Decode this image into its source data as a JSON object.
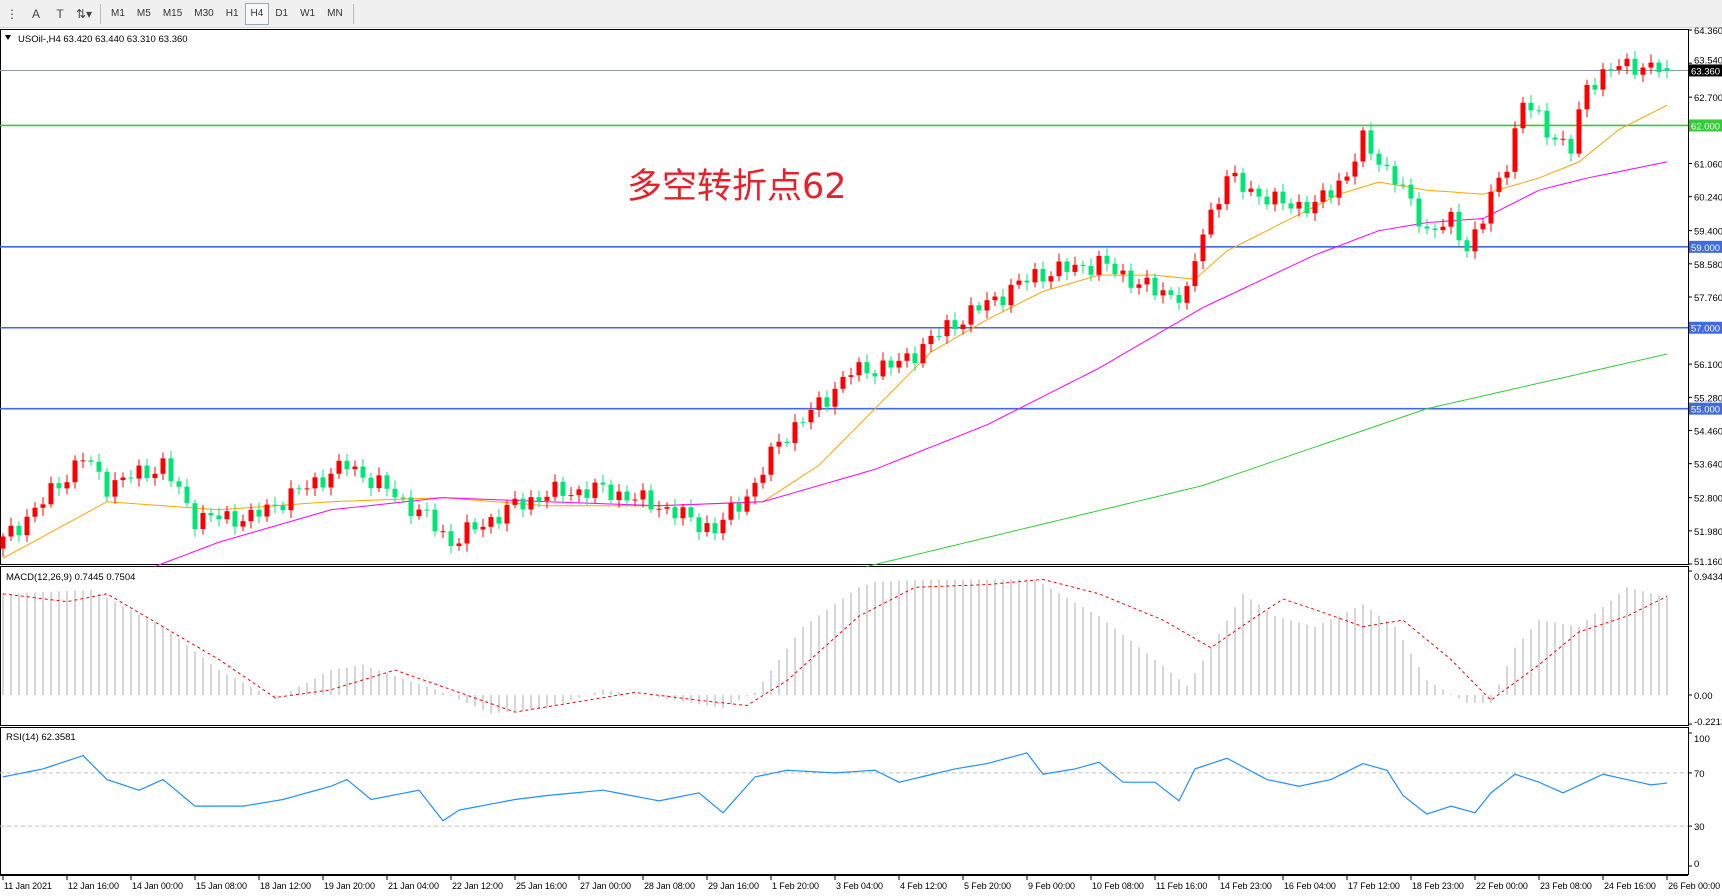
{
  "toolbar": {
    "tools": [
      {
        "icon": "period-separator-icon",
        "label": ""
      },
      {
        "icon": "text-icon",
        "label": "A"
      },
      {
        "icon": "text-label-icon",
        "label": "T"
      },
      {
        "icon": "arrows-icon",
        "label": "⇅▾"
      }
    ],
    "timeframes": [
      "M1",
      "M5",
      "M15",
      "M30",
      "H1",
      "H4",
      "D1",
      "W1",
      "MN"
    ],
    "active_timeframe": "H4"
  },
  "chart": {
    "symbol_line": "USOil-,H4  63.420 63.440 63.310 63.360",
    "annotation": "多空转折点62",
    "colors": {
      "up": "#ff0000",
      "down": "#00e676",
      "ma_fast": "#ffa500",
      "ma_mid": "#ff00ff",
      "ma_slow": "#32cd32",
      "level_green": "#32cd32",
      "level_blue": "#4169e1",
      "current": "#8a9aa8"
    }
  },
  "chart_data": [
    {
      "type": "candlestick",
      "title": "USOil-,H4",
      "ohlc_last": {
        "open": 63.42,
        "high": 63.44,
        "low": 63.31,
        "close": 63.36
      },
      "ylim": [
        51.16,
        64.36
      ],
      "y_ticks": [
        "64.360",
        "63.540",
        "62.700",
        "61.060",
        "60.240",
        "59.400",
        "58.580",
        "57.760",
        "56.100",
        "55.280",
        "54.460",
        "53.640",
        "52.800",
        "51.980",
        "51.160"
      ],
      "x_ticks": [
        "11 Jan 2021",
        "12 Jan 16:00",
        "14 Jan 00:00",
        "15 Jan 08:00",
        "18 Jan 12:00",
        "19 Jan 20:00",
        "21 Jan 04:00",
        "22 Jan 12:00",
        "25 Jan 16:00",
        "27 Jan 00:00",
        "28 Jan 08:00",
        "29 Jan 16:00",
        "1 Feb 20:00",
        "3 Feb 04:00",
        "4 Feb 12:00",
        "5 Feb 20:00",
        "9 Feb 00:00",
        "10 Feb 08:00",
        "11 Feb 16:00",
        "14 Feb 23:00",
        "16 Feb 04:00",
        "17 Feb 12:00",
        "18 Feb 23:00",
        "22 Feb 00:00",
        "23 Feb 08:00",
        "24 Feb 16:00",
        "26 Feb 00:00"
      ],
      "bars": 209,
      "close_keypoints": [
        [
          0,
          51.74
        ],
        [
          5,
          52.7
        ],
        [
          10,
          53.8
        ],
        [
          13,
          53.1
        ],
        [
          20,
          53.6
        ],
        [
          24,
          52.3
        ],
        [
          31,
          52.3
        ],
        [
          41,
          53.4
        ],
        [
          43,
          53.6
        ],
        [
          48,
          53.0
        ],
        [
          53,
          52.3
        ],
        [
          56,
          51.7
        ],
        [
          64,
          52.6
        ],
        [
          68,
          52.9
        ],
        [
          75,
          53.0
        ],
        [
          82,
          52.6
        ],
        [
          89,
          52.0
        ],
        [
          94,
          53.1
        ],
        [
          97,
          54.2
        ],
        [
          101,
          54.9
        ],
        [
          106,
          55.9
        ],
        [
          112,
          56.1
        ],
        [
          118,
          57.0
        ],
        [
          123,
          57.6
        ],
        [
          129,
          58.3
        ],
        [
          137,
          58.6
        ],
        [
          144,
          57.9
        ],
        [
          148,
          57.8
        ],
        [
          150,
          59.4
        ],
        [
          153,
          60.7
        ],
        [
          159,
          60.1
        ],
        [
          164,
          60.0
        ],
        [
          168,
          60.8
        ],
        [
          170,
          61.6
        ],
        [
          174,
          60.7
        ],
        [
          178,
          59.4
        ],
        [
          181,
          59.6
        ],
        [
          183,
          59.0
        ],
        [
          185,
          59.7
        ],
        [
          188,
          61.1
        ],
        [
          190,
          62.6
        ],
        [
          193,
          61.9
        ],
        [
          196,
          61.4
        ],
        [
          198,
          63.0
        ],
        [
          201,
          63.4
        ],
        [
          204,
          63.5
        ],
        [
          208,
          63.36
        ]
      ],
      "moving_averages": [
        {
          "color": "#ffa500",
          "keypoints": [
            [
              0,
              51.3
            ],
            [
              13,
              52.7
            ],
            [
              27,
              52.5
            ],
            [
              41,
              52.7
            ],
            [
              55,
              52.8
            ],
            [
              68,
              52.6
            ],
            [
              82,
              52.6
            ],
            [
              95,
              52.7
            ],
            [
              102,
              53.6
            ],
            [
              109,
              55.0
            ],
            [
              116,
              56.4
            ],
            [
              123,
              57.2
            ],
            [
              130,
              57.9
            ],
            [
              137,
              58.3
            ],
            [
              144,
              58.3
            ],
            [
              149,
              58.2
            ],
            [
              153,
              58.9
            ],
            [
              160,
              59.6
            ],
            [
              167,
              60.3
            ],
            [
              172,
              60.6
            ],
            [
              178,
              60.4
            ],
            [
              185,
              60.3
            ],
            [
              192,
              60.7
            ],
            [
              197,
              61.1
            ],
            [
              202,
              61.9
            ],
            [
              208,
              62.5
            ]
          ]
        },
        {
          "color": "#ff00ff",
          "keypoints": [
            [
              19,
              51.1
            ],
            [
              27,
              51.7
            ],
            [
              41,
              52.5
            ],
            [
              55,
              52.8
            ],
            [
              68,
              52.7
            ],
            [
              82,
              52.6
            ],
            [
              95,
              52.7
            ],
            [
              109,
              53.5
            ],
            [
              123,
              54.6
            ],
            [
              137,
              56.0
            ],
            [
              150,
              57.5
            ],
            [
              164,
              58.8
            ],
            [
              172,
              59.4
            ],
            [
              178,
              59.6
            ],
            [
              185,
              59.7
            ],
            [
              192,
              60.4
            ],
            [
              198,
              60.7
            ],
            [
              208,
              61.1
            ]
          ]
        },
        {
          "color": "#32cd32",
          "keypoints": [
            [
              108,
              51.1
            ],
            [
              150,
              53.1
            ],
            [
              178,
              55.0
            ],
            [
              208,
              56.35
            ]
          ]
        }
      ],
      "levels": [
        {
          "value": 63.36,
          "label": "63.360",
          "kind": "current"
        },
        {
          "value": 62.0,
          "label": "62.000",
          "kind": "green"
        },
        {
          "value": 59.0,
          "label": "59.000",
          "kind": "blue"
        },
        {
          "value": 57.0,
          "label": "57.000",
          "kind": "blue"
        },
        {
          "value": 55.0,
          "label": "55.000",
          "kind": "blue"
        }
      ]
    },
    {
      "type": "bar",
      "title": "MACD(12,26,9) 0.7445 0.7504",
      "ylim": [
        -0.2213,
        0.9434
      ],
      "y_ticks": [
        "0.9434",
        "0.00",
        "-0.2213"
      ],
      "histogram_keypoints": [
        [
          0,
          0.77
        ],
        [
          11,
          0.8
        ],
        [
          20,
          0.52
        ],
        [
          27,
          0.19
        ],
        [
          34,
          -0.03
        ],
        [
          41,
          0.19
        ],
        [
          45,
          0.23
        ],
        [
          55,
          0.02
        ],
        [
          61,
          -0.14
        ],
        [
          68,
          -0.1
        ],
        [
          75,
          0.04
        ],
        [
          82,
          -0.02
        ],
        [
          90,
          -0.1
        ],
        [
          94,
          0.02
        ],
        [
          100,
          0.52
        ],
        [
          107,
          0.82
        ],
        [
          109,
          0.86
        ],
        [
          116,
          0.88
        ],
        [
          129,
          0.88
        ],
        [
          137,
          0.6
        ],
        [
          144,
          0.27
        ],
        [
          148,
          0.07
        ],
        [
          151,
          0.36
        ],
        [
          155,
          0.77
        ],
        [
          159,
          0.6
        ],
        [
          164,
          0.52
        ],
        [
          170,
          0.69
        ],
        [
          174,
          0.52
        ],
        [
          178,
          0.11
        ],
        [
          183,
          -0.06
        ],
        [
          186,
          -0.06
        ],
        [
          189,
          0.36
        ],
        [
          192,
          0.57
        ],
        [
          197,
          0.52
        ],
        [
          203,
          0.82
        ],
        [
          208,
          0.7445
        ]
      ],
      "signal_keypoints": [
        [
          0,
          0.77
        ],
        [
          8,
          0.71
        ],
        [
          13,
          0.77
        ],
        [
          20,
          0.52
        ],
        [
          27,
          0.27
        ],
        [
          34,
          -0.02
        ],
        [
          41,
          0.04
        ],
        [
          49,
          0.19
        ],
        [
          57,
          0.02
        ],
        [
          64,
          -0.13
        ],
        [
          71,
          -0.06
        ],
        [
          79,
          0.02
        ],
        [
          87,
          -0.04
        ],
        [
          93,
          -0.08
        ],
        [
          98,
          0.11
        ],
        [
          107,
          0.6
        ],
        [
          114,
          0.82
        ],
        [
          123,
          0.84
        ],
        [
          130,
          0.88
        ],
        [
          137,
          0.77
        ],
        [
          145,
          0.57
        ],
        [
          151,
          0.36
        ],
        [
          156,
          0.57
        ],
        [
          160,
          0.73
        ],
        [
          164,
          0.65
        ],
        [
          170,
          0.52
        ],
        [
          175,
          0.57
        ],
        [
          181,
          0.27
        ],
        [
          186,
          -0.04
        ],
        [
          192,
          0.23
        ],
        [
          197,
          0.48
        ],
        [
          203,
          0.6
        ],
        [
          208,
          0.7504
        ]
      ]
    },
    {
      "type": "line",
      "title": "RSI(14) 62.3581",
      "ylim": [
        0,
        100
      ],
      "y_ticks": [
        "100",
        "70",
        "30",
        "0"
      ],
      "levels": [
        70,
        30
      ],
      "keypoints": [
        [
          0,
          67
        ],
        [
          5,
          73
        ],
        [
          10,
          83
        ],
        [
          13,
          65
        ],
        [
          17,
          57
        ],
        [
          20,
          65
        ],
        [
          24,
          45
        ],
        [
          30,
          45
        ],
        [
          35,
          50
        ],
        [
          41,
          60
        ],
        [
          43,
          65
        ],
        [
          46,
          50
        ],
        [
          52,
          57
        ],
        [
          55,
          34
        ],
        [
          57,
          42
        ],
        [
          64,
          50
        ],
        [
          68,
          53
        ],
        [
          75,
          57
        ],
        [
          82,
          49
        ],
        [
          87,
          55
        ],
        [
          90,
          40
        ],
        [
          94,
          67
        ],
        [
          98,
          72
        ],
        [
          104,
          70
        ],
        [
          109,
          72
        ],
        [
          112,
          63
        ],
        [
          119,
          73
        ],
        [
          123,
          77
        ],
        [
          128,
          85
        ],
        [
          130,
          69
        ],
        [
          134,
          73
        ],
        [
          137,
          78
        ],
        [
          140,
          63
        ],
        [
          144,
          63
        ],
        [
          147,
          49
        ],
        [
          149,
          73
        ],
        [
          153,
          81
        ],
        [
          158,
          65
        ],
        [
          162,
          60
        ],
        [
          166,
          65
        ],
        [
          170,
          77
        ],
        [
          173,
          72
        ],
        [
          175,
          53
        ],
        [
          178,
          39
        ],
        [
          181,
          45
        ],
        [
          184,
          40
        ],
        [
          186,
          55
        ],
        [
          189,
          69
        ],
        [
          192,
          63
        ],
        [
          195,
          55
        ],
        [
          200,
          69
        ],
        [
          203,
          65
        ],
        [
          206,
          61
        ],
        [
          208,
          62.36
        ]
      ]
    }
  ]
}
